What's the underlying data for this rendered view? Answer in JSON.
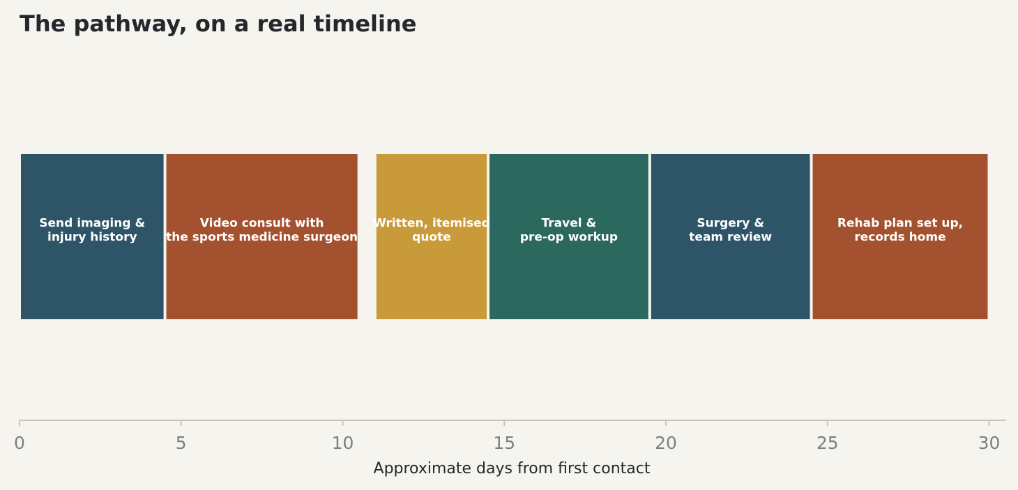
{
  "chart_data": {
    "type": "bar",
    "orientation": "horizontal-timeline",
    "title": "The pathway, on a real timeline",
    "xlabel": "Approximate days from first contact",
    "ylabel": "",
    "xlim": [
      0,
      30.5
    ],
    "xticks": [
      0,
      5,
      10,
      15,
      20,
      25,
      30
    ],
    "grid": false,
    "segments": [
      {
        "label": "Send imaging &\ninjury history",
        "start": 0,
        "end": 4.5,
        "color": "#2e5468"
      },
      {
        "label": "Video consult with\nthe sports medicine surgeon",
        "start": 4.5,
        "end": 10.5,
        "color": "#a3512e"
      },
      {
        "label": "Written, itemised\nquote",
        "start": 11.0,
        "end": 14.5,
        "color": "#c99a3a"
      },
      {
        "label": "Travel &\npre-op workup",
        "start": 14.5,
        "end": 19.5,
        "color": "#2b685d"
      },
      {
        "label": "Surgery &\nteam review",
        "start": 19.5,
        "end": 24.5,
        "color": "#2e5468"
      },
      {
        "label": "Rehab plan set up,\nrecords home",
        "start": 24.5,
        "end": 30.0,
        "color": "#a3512e"
      }
    ]
  },
  "colors": {
    "background": "#f5f4ef",
    "axis_line": "#c8c6b3",
    "tick_text": "#7b7f85",
    "title_text": "#25272b",
    "bar_text": "#ffffff"
  }
}
